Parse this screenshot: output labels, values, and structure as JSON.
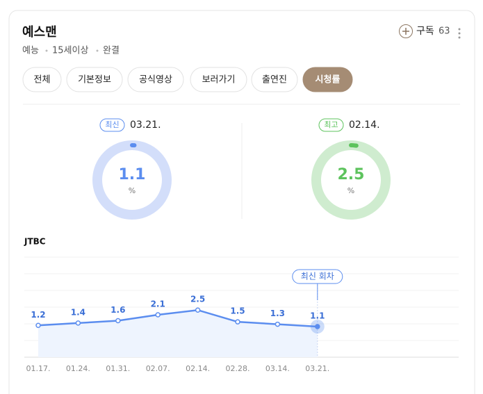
{
  "header": {
    "title": "예스맨",
    "meta": [
      "예능",
      "15세이상",
      "완결"
    ],
    "subscribe": "구독",
    "subscribers": "63"
  },
  "tabs": [
    "전체",
    "기본정보",
    "공식영상",
    "보러가기",
    "출연진",
    "시청률"
  ],
  "active_tab": 5,
  "latest": {
    "badge": "최신",
    "date": "03.21.",
    "value": 1.1,
    "unit": "%"
  },
  "best": {
    "badge": "최고",
    "date": "02.14.",
    "value": 2.5,
    "unit": "%"
  },
  "gauge_max": 100,
  "chart_data": {
    "type": "line",
    "title": "JTBC",
    "categories": [
      "01.17.",
      "01.24.",
      "01.31.",
      "02.07.",
      "02.14.",
      "02.28.",
      "03.14.",
      "03.21."
    ],
    "values": [
      1.2,
      1.4,
      1.6,
      2.1,
      2.5,
      1.5,
      1.3,
      1.1
    ],
    "color": "#5b8def",
    "ylim": [
      -1.5,
      7
    ],
    "annotation": "최신 회차"
  }
}
